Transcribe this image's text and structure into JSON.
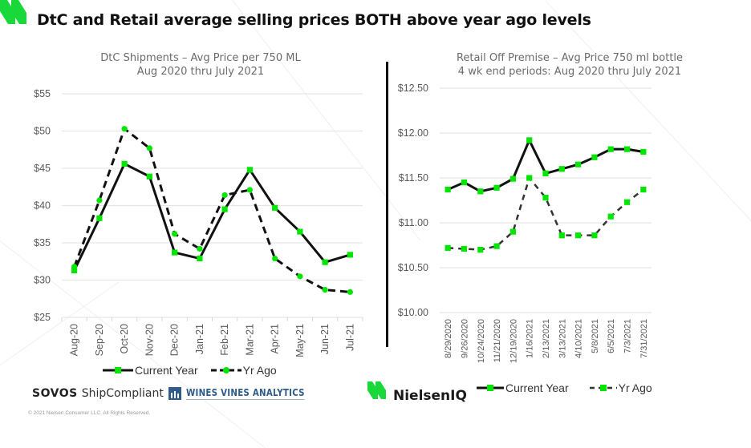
{
  "headline": "DtC and Retail average selling prices BOTH above year ago levels",
  "colors": {
    "brand_green": "#18d83a",
    "marker_green": "#00e600",
    "line_black": "#111111",
    "grid": "#e6e6e6",
    "wva_blue": "#2e5d8c"
  },
  "chart_data": [
    {
      "type": "line",
      "title": "DtC Shipments – Avg Price per 750 ML",
      "subtitle": "Aug 2020 thru July 2021",
      "xlabel": "",
      "ylabel": "",
      "categories": [
        "Aug-20",
        "Sep-20",
        "Oct-20",
        "Nov-20",
        "Dec-20",
        "Jan-21",
        "Feb-21",
        "Mar-21",
        "Apr-21",
        "May-21",
        "Jun-21",
        "Jul-21"
      ],
      "ylim": [
        25,
        55
      ],
      "yticks": [
        25,
        30,
        35,
        40,
        45,
        50,
        55
      ],
      "ytick_labels": [
        "$25",
        "$30",
        "$35",
        "$40",
        "$45",
        "$50",
        "$55"
      ],
      "grid": true,
      "legend_position": "bottom",
      "series": [
        {
          "name": "Current Year",
          "style": "solid",
          "marker": "square",
          "values": [
            31.3,
            38.3,
            45.6,
            43.9,
            33.7,
            32.9,
            39.5,
            44.8,
            39.7,
            36.5,
            32.4,
            33.4
          ]
        },
        {
          "name": "Yr Ago",
          "style": "dashed",
          "marker": "circle",
          "values": [
            31.8,
            40.7,
            50.3,
            47.7,
            36.2,
            34.2,
            41.4,
            42.1,
            32.9,
            30.5,
            28.7,
            28.4
          ]
        }
      ]
    },
    {
      "type": "line",
      "title": "Retail Off Premise – Avg Price 750 ml bottle",
      "subtitle": "4 wk end periods: Aug 2020 thru July 2021",
      "xlabel": "",
      "ylabel": "",
      "categories": [
        "8/29/2020",
        "9/26/2020",
        "10/24/2020",
        "11/21/2020",
        "12/19/2020",
        "1/16/2021",
        "2/13/2021",
        "3/13/2021",
        "4/10/2021",
        "5/8/2021",
        "6/5/2021",
        "7/3/2021",
        "7/31/2021"
      ],
      "ylim": [
        10.0,
        12.5
      ],
      "yticks": [
        10.0,
        10.5,
        11.0,
        11.5,
        12.0,
        12.5
      ],
      "ytick_labels": [
        "$10.00",
        "$10.50",
        "$11.00",
        "$11.50",
        "$12.00",
        "$12.50"
      ],
      "grid": true,
      "legend_position": "bottom",
      "series": [
        {
          "name": "Current Year",
          "style": "solid",
          "marker": "square",
          "values": [
            11.37,
            11.45,
            11.35,
            11.39,
            11.49,
            11.92,
            11.55,
            11.6,
            11.65,
            11.73,
            11.82,
            11.82,
            11.79
          ]
        },
        {
          "name": "Yr Ago",
          "style": "dashed",
          "marker": "square",
          "values": [
            10.72,
            10.71,
            10.7,
            10.74,
            10.9,
            11.5,
            11.28,
            10.86,
            10.86,
            10.86,
            11.07,
            11.23,
            11.37
          ]
        }
      ]
    }
  ],
  "logos": {
    "sovos": "SOVOS",
    "shipcompliant": "ShipCompliant",
    "wines_vines": "WINES VINES ANALYTICS",
    "nielseniq": "NielsenIQ"
  },
  "copyright": "© 2021 Nielsen Consumer LLC. All Rights Reserved."
}
